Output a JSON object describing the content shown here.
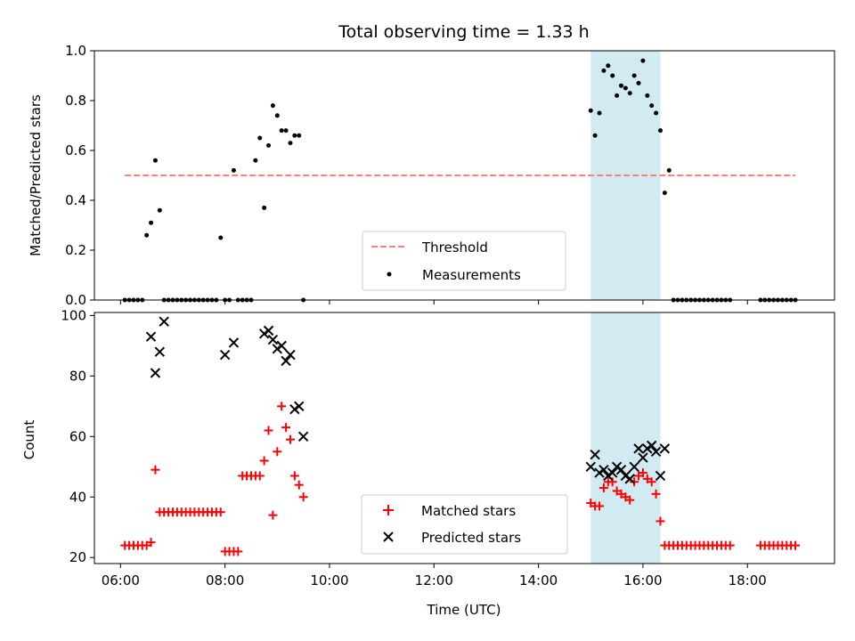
{
  "chart_data": [
    {
      "type": "scatter",
      "title": "Total observing time = 1.33 h",
      "ylabel": "Matched/Predicted stars",
      "xlim": [
        "05:30",
        "19:40"
      ],
      "ylim": [
        0,
        1.0
      ],
      "yticks": [
        "0.0",
        "0.2",
        "0.4",
        "0.6",
        "0.8",
        "1.0"
      ],
      "highlight_band": {
        "from": "15:00",
        "to": "16:20",
        "color": "#add8e6"
      },
      "threshold": {
        "name": "Threshold",
        "value": 0.5,
        "from": "06:05",
        "to": "18:55",
        "color": "#ff7f7f"
      },
      "series": [
        {
          "name": "Measurements",
          "color": "#000000",
          "x": [
            "06:05",
            "06:10",
            "06:15",
            "06:20",
            "06:25",
            "06:30",
            "06:35",
            "06:40",
            "06:45",
            "06:50",
            "06:55",
            "07:00",
            "07:05",
            "07:10",
            "07:15",
            "07:20",
            "07:25",
            "07:30",
            "07:35",
            "07:40",
            "07:45",
            "07:50",
            "07:55",
            "08:00",
            "08:05",
            "08:10",
            "08:15",
            "08:20",
            "08:25",
            "08:30",
            "08:35",
            "08:40",
            "08:45",
            "08:50",
            "08:55",
            "09:00",
            "09:05",
            "09:10",
            "09:15",
            "09:20",
            "09:25",
            "09:30",
            "15:00",
            "15:05",
            "15:10",
            "15:15",
            "15:20",
            "15:25",
            "15:30",
            "15:35",
            "15:40",
            "15:45",
            "15:50",
            "15:55",
            "16:00",
            "16:05",
            "16:10",
            "16:15",
            "16:20",
            "16:25",
            "16:30",
            "16:35",
            "16:40",
            "16:45",
            "16:50",
            "16:55",
            "17:00",
            "17:05",
            "17:10",
            "17:15",
            "17:20",
            "17:25",
            "17:30",
            "17:35",
            "17:40",
            "18:15",
            "18:20",
            "18:25",
            "18:30",
            "18:35",
            "18:40",
            "18:45",
            "18:50",
            "18:55"
          ],
          "y": [
            0,
            0,
            0,
            0,
            0,
            0.26,
            0.31,
            0.56,
            0.36,
            0,
            0,
            0,
            0,
            0,
            0,
            0,
            0,
            0,
            0,
            0,
            0,
            0,
            0.25,
            0,
            0,
            0.52,
            0,
            0,
            0,
            0,
            0.56,
            0.65,
            0.37,
            0.62,
            0.78,
            0.74,
            0.68,
            0.68,
            0.63,
            0.66,
            0.66,
            0,
            0.76,
            0.66,
            0.75,
            0.92,
            0.94,
            0.9,
            0.82,
            0.86,
            0.85,
            0.83,
            0.9,
            0.87,
            0.96,
            0.82,
            0.78,
            0.75,
            0.68,
            0.43,
            0.52,
            0,
            0,
            0,
            0,
            0,
            0,
            0,
            0,
            0,
            0,
            0,
            0,
            0,
            0,
            0,
            0,
            0,
            0,
            0,
            0,
            0,
            0,
            0
          ]
        }
      ],
      "legend": {
        "position": "lower-center",
        "entries": [
          "Threshold",
          "Measurements"
        ]
      }
    },
    {
      "type": "scatter",
      "xlabel": "Time (UTC)",
      "ylabel": "Count",
      "xlim": [
        "05:30",
        "19:40"
      ],
      "ylim": [
        18,
        101
      ],
      "xticks": [
        "06:00",
        "08:00",
        "10:00",
        "12:00",
        "14:00",
        "16:00",
        "18:00"
      ],
      "yticks": [
        "20",
        "40",
        "60",
        "80",
        "100"
      ],
      "highlight_band": {
        "from": "15:00",
        "to": "16:20",
        "color": "#add8e6"
      },
      "series": [
        {
          "name": "Matched stars",
          "marker": "+",
          "color": "#ff0000",
          "x": [
            "06:05",
            "06:10",
            "06:15",
            "06:20",
            "06:25",
            "06:30",
            "06:35",
            "06:40",
            "06:45",
            "06:50",
            "06:55",
            "07:00",
            "07:05",
            "07:10",
            "07:15",
            "07:20",
            "07:25",
            "07:30",
            "07:35",
            "07:40",
            "07:45",
            "07:50",
            "07:55",
            "08:00",
            "08:05",
            "08:10",
            "08:15",
            "08:20",
            "08:25",
            "08:30",
            "08:35",
            "08:40",
            "08:45",
            "08:50",
            "08:55",
            "09:00",
            "09:05",
            "09:10",
            "09:15",
            "09:20",
            "09:25",
            "09:30",
            "15:00",
            "15:05",
            "15:10",
            "15:15",
            "15:20",
            "15:25",
            "15:30",
            "15:35",
            "15:40",
            "15:45",
            "15:50",
            "15:55",
            "16:00",
            "16:05",
            "16:10",
            "16:15",
            "16:20",
            "16:25",
            "16:30",
            "16:35",
            "16:40",
            "16:45",
            "16:50",
            "16:55",
            "17:00",
            "17:05",
            "17:10",
            "17:15",
            "17:20",
            "17:25",
            "17:30",
            "17:35",
            "17:40",
            "18:15",
            "18:20",
            "18:25",
            "18:30",
            "18:35",
            "18:40",
            "18:45",
            "18:50",
            "18:55"
          ],
          "y": [
            24,
            24,
            24,
            24,
            24,
            24,
            25,
            49,
            35,
            35,
            35,
            35,
            35,
            35,
            35,
            35,
            35,
            35,
            35,
            35,
            35,
            35,
            35,
            22,
            22,
            22,
            22,
            47,
            47,
            47,
            47,
            47,
            52,
            62,
            34,
            55,
            70,
            63,
            59,
            47,
            44,
            40,
            38,
            37,
            37,
            43,
            45,
            45,
            42,
            41,
            40,
            39,
            45,
            47,
            48,
            46,
            45,
            41,
            32,
            24,
            24,
            24,
            24,
            24,
            24,
            24,
            24,
            24,
            24,
            24,
            24,
            24,
            24,
            24,
            24,
            24,
            24,
            24,
            24,
            24,
            24,
            24,
            24,
            24
          ]
        },
        {
          "name": "Predicted stars",
          "marker": "x",
          "color": "#000000",
          "x": [
            "06:35",
            "06:40",
            "06:45",
            "06:50",
            "08:00",
            "08:10",
            "08:45",
            "08:50",
            "08:55",
            "09:00",
            "09:05",
            "09:10",
            "09:15",
            "09:20",
            "09:25",
            "09:30",
            "15:00",
            "15:05",
            "15:10",
            "15:15",
            "15:20",
            "15:25",
            "15:30",
            "15:35",
            "15:40",
            "15:45",
            "15:50",
            "15:55",
            "16:00",
            "16:05",
            "16:10",
            "16:15",
            "16:20",
            "16:25"
          ],
          "y": [
            93,
            81,
            88,
            98,
            87,
            91,
            94,
            95,
            92,
            89,
            90,
            85,
            87,
            69,
            70,
            60,
            50,
            54,
            48,
            49,
            47,
            48,
            50,
            49,
            47,
            46,
            50,
            56,
            53,
            56,
            57,
            55,
            47,
            56
          ]
        }
      ],
      "legend": {
        "position": "lower-center",
        "entries": [
          "Matched stars",
          "Predicted stars"
        ]
      }
    }
  ]
}
